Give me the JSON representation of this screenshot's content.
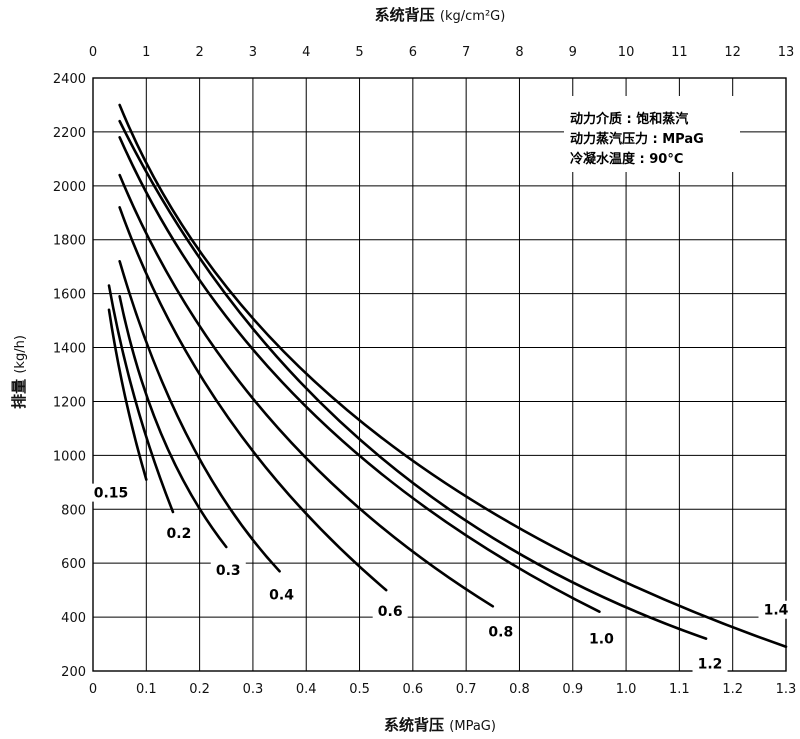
{
  "chart_data": {
    "type": "line",
    "title": "",
    "xlabel": "系统背压",
    "xlabel_unit": "(MPaG)",
    "x2label": "系统背压",
    "x2label_unit": "(kg/cm²G)",
    "ylabel": "排量",
    "ylabel_unit": "(kg/h)",
    "xlim": [
      0,
      1.3
    ],
    "ylim": [
      200,
      2400
    ],
    "x2lim": [
      0,
      13
    ],
    "x_ticks": [
      "0",
      "0.1",
      "0.2",
      "0.3",
      "0.4",
      "0.5",
      "0.6",
      "0.7",
      "0.8",
      "0.9",
      "1.0",
      "1.1",
      "1.2",
      "1.3"
    ],
    "x2_ticks": [
      "0",
      "1",
      "2",
      "3",
      "4",
      "5",
      "6",
      "7",
      "8",
      "9",
      "10",
      "11",
      "12",
      "13"
    ],
    "y_ticks": [
      "200",
      "400",
      "600",
      "800",
      "1000",
      "1200",
      "1400",
      "1600",
      "1800",
      "2000",
      "2200",
      "2400"
    ],
    "grid": true,
    "annotations": [
      "动力介质 : 饱和蒸汽",
      "动力蒸汽压力 : MPaG",
      "冷凝水温度 : 90°C"
    ],
    "series": [
      {
        "name": "0.15",
        "label": "0.15",
        "x": [
          0.03,
          0.06,
          0.1
        ],
        "y": [
          1540,
          1220,
          910
        ]
      },
      {
        "name": "0.2",
        "label": "0.2",
        "x": [
          0.03,
          0.08,
          0.15
        ],
        "y": [
          1630,
          1200,
          790
        ]
      },
      {
        "name": "0.3",
        "label": "0.3",
        "x": [
          0.05,
          0.13,
          0.25
        ],
        "y": [
          1590,
          1070,
          660
        ]
      },
      {
        "name": "0.4",
        "label": "0.4",
        "x": [
          0.05,
          0.18,
          0.35
        ],
        "y": [
          1720,
          1060,
          570
        ]
      },
      {
        "name": "0.6",
        "label": "0.6",
        "x": [
          0.05,
          0.25,
          0.55
        ],
        "y": [
          1920,
          1150,
          500
        ]
      },
      {
        "name": "0.8",
        "label": "0.8",
        "x": [
          0.05,
          0.33,
          0.75
        ],
        "y": [
          2040,
          1140,
          440
        ]
      },
      {
        "name": "1.0",
        "label": "1.0",
        "x": [
          0.05,
          0.4,
          0.95
        ],
        "y": [
          2180,
          1180,
          420
        ]
      },
      {
        "name": "1.2",
        "label": "1.2",
        "x": [
          0.05,
          0.5,
          1.15
        ],
        "y": [
          2240,
          1060,
          320
        ]
      },
      {
        "name": "1.4",
        "label": "1.4",
        "x": [
          0.05,
          0.5,
          1.3
        ],
        "y": [
          2300,
          1130,
          290
        ]
      }
    ]
  }
}
